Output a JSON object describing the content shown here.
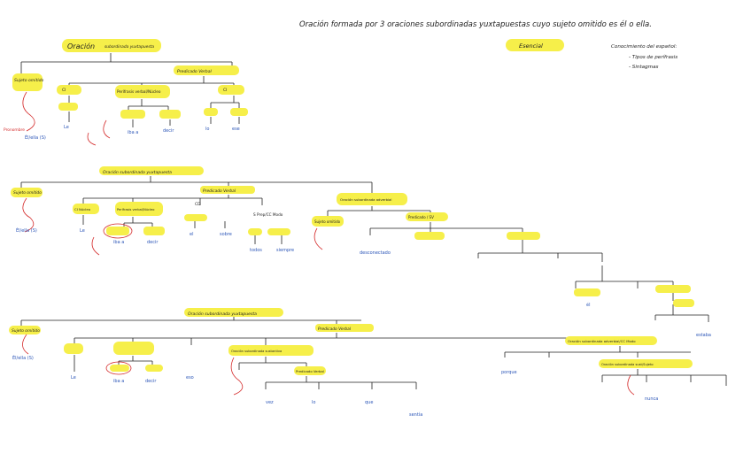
{
  "header": {
    "title": "Oración formada por 3 oraciones subordinadas yuxtapuestas cuyo sujeto omitido es él o ella.",
    "badge": "Esencial",
    "notes": [
      "Conocimiento del español:",
      "- Tipos de perífrasis",
      "- Sintagmas"
    ]
  },
  "trees": [
    {
      "title": "Oración",
      "subtitle": "subordinada yuxtapuesta",
      "subject_label": "Sujeto omitido",
      "predicate_label": "Predicado Verbal",
      "branches": [
        "CI",
        "Perífrasis verbal/Núcleo",
        "CI"
      ],
      "words": [
        "Le",
        "iba a",
        "decir",
        "lo",
        "ese",
        "largo"
      ],
      "notes": [
        "Él/ella (S)",
        "Pronombre"
      ]
    },
    {
      "title": "Oración subordinada yuxtapuesta",
      "subject_label": "Sujeto omitido",
      "predicate_label": "Predicado Verbal",
      "branches": [
        "CI Núcleo",
        "Perífrasis verbal/Núcleo",
        "CD",
        "S Prep/CC Modo",
        "Oración subordinada adverbial"
      ],
      "words": [
        "Le",
        "iba a",
        "decir",
        "el",
        "sobre",
        "todos",
        "siempre",
        "desconectado",
        "él",
        "estaba"
      ],
      "notes": [
        "Él/ella (S)",
        "Sujeto omitido",
        "Predicado / SV"
      ]
    },
    {
      "title": "Oración subordinada yuxtapuesta",
      "subject_label": "Sujeto omitido",
      "predicate_label": "Predicado Verbal",
      "branches": [
        "Oración subordinada sustantiva",
        "Oración subordinada adverbial/CC Modo",
        "Oración subordinada sust/Sujeto"
      ],
      "words": [
        "Le",
        "iba a",
        "decir",
        "eso",
        "vez",
        "lo",
        "que",
        "sentía",
        "porque",
        "nunca"
      ],
      "notes": [
        "Él/ella (S)",
        "Predicado Verbal"
      ]
    }
  ]
}
